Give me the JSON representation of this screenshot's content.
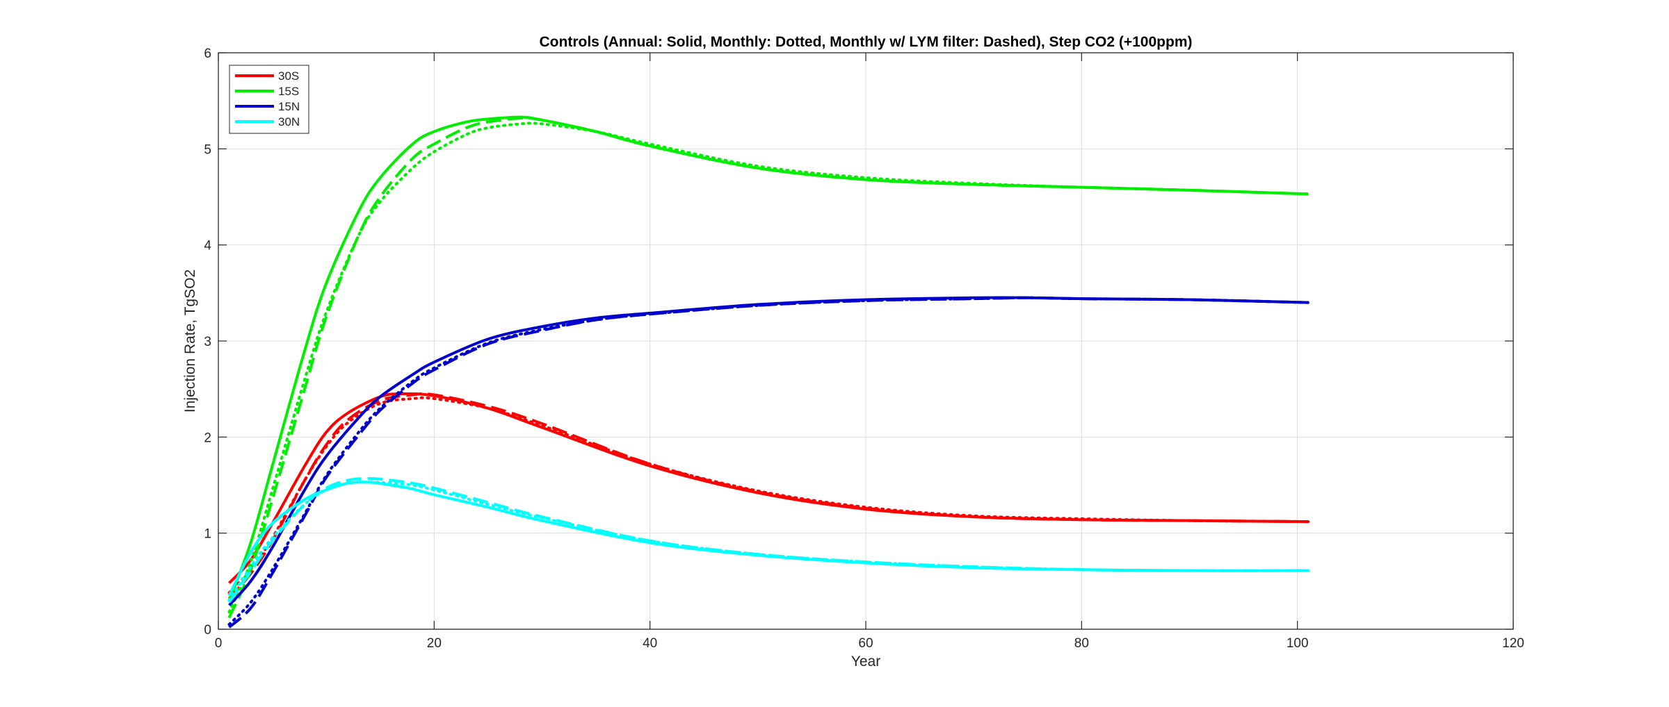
{
  "chart_data": {
    "type": "line",
    "title": "Controls (Annual: Solid, Monthly: Dotted, Monthly w/ LYM filter: Dashed), Step CO2 (+100ppm)",
    "xlabel": "Year",
    "ylabel": "Injection Rate, TgSO2",
    "xlim": [
      0,
      120
    ],
    "ylim": [
      0,
      6
    ],
    "xticks": [
      0,
      20,
      40,
      60,
      80,
      100,
      120
    ],
    "yticks": [
      0,
      1,
      2,
      3,
      4,
      5,
      6
    ],
    "grid": true,
    "legend_position": "top-left",
    "styles": {
      "annual": "solid",
      "monthly": "dotted",
      "monthly_lym": "dashed"
    },
    "series": [
      {
        "name": "30S",
        "color": "#ff0000",
        "annual": {
          "x": [
            1,
            3,
            5,
            8,
            10,
            12,
            15,
            17,
            20,
            25,
            30,
            40,
            50,
            60,
            70,
            80,
            90,
            101
          ],
          "y": [
            0.48,
            0.72,
            1.1,
            1.7,
            2.05,
            2.25,
            2.42,
            2.45,
            2.43,
            2.3,
            2.1,
            1.7,
            1.42,
            1.25,
            1.17,
            1.14,
            1.13,
            1.12
          ]
        },
        "monthly": {
          "x": [
            1,
            3,
            5,
            8,
            10,
            12,
            15,
            18,
            20,
            25,
            30,
            40,
            50,
            60,
            70,
            80,
            90,
            101
          ],
          "y": [
            0.38,
            0.62,
            0.95,
            1.55,
            1.9,
            2.15,
            2.35,
            2.4,
            2.4,
            2.3,
            2.12,
            1.72,
            1.44,
            1.27,
            1.18,
            1.15,
            1.13,
            1.12
          ]
        },
        "monthly_lym": {
          "x": [
            1,
            3,
            5,
            8,
            10,
            12,
            15,
            18,
            20,
            25,
            30,
            40,
            50,
            60,
            70,
            80,
            90,
            101
          ],
          "y": [
            0.32,
            0.58,
            0.92,
            1.55,
            1.92,
            2.18,
            2.38,
            2.44,
            2.44,
            2.32,
            2.14,
            1.72,
            1.43,
            1.26,
            1.17,
            1.14,
            1.13,
            1.12
          ]
        }
      },
      {
        "name": "15S",
        "color": "#00ee00",
        "annual": {
          "x": [
            1,
            3,
            5,
            8,
            10,
            13,
            15,
            18,
            20,
            23,
            25,
            28,
            30,
            35,
            40,
            50,
            60,
            70,
            80,
            90,
            101
          ],
          "y": [
            0.3,
            0.9,
            1.7,
            2.9,
            3.6,
            4.35,
            4.7,
            5.05,
            5.18,
            5.28,
            5.31,
            5.33,
            5.3,
            5.18,
            5.03,
            4.8,
            4.68,
            4.63,
            4.6,
            4.57,
            4.53
          ]
        },
        "monthly": {
          "x": [
            1,
            3,
            5,
            8,
            10,
            13,
            15,
            18,
            20,
            23,
            25,
            28,
            30,
            35,
            40,
            50,
            60,
            70,
            80,
            90,
            101
          ],
          "y": [
            0.18,
            0.7,
            1.45,
            2.6,
            3.3,
            4.1,
            4.45,
            4.8,
            4.97,
            5.15,
            5.22,
            5.26,
            5.26,
            5.18,
            5.05,
            4.82,
            4.7,
            4.64,
            4.6,
            4.57,
            4.53
          ]
        },
        "monthly_lym": {
          "x": [
            1,
            3,
            5,
            8,
            10,
            13,
            15,
            18,
            20,
            23,
            25,
            28,
            30,
            35,
            40,
            50,
            60,
            70,
            80,
            90,
            101
          ],
          "y": [
            0.12,
            0.62,
            1.35,
            2.5,
            3.25,
            4.1,
            4.5,
            4.9,
            5.05,
            5.22,
            5.28,
            5.32,
            5.3,
            5.18,
            5.03,
            4.8,
            4.68,
            4.63,
            4.6,
            4.57,
            4.53
          ]
        }
      },
      {
        "name": "15N",
        "color": "#0000cc",
        "annual": {
          "x": [
            1,
            3,
            5,
            8,
            10,
            13,
            15,
            18,
            20,
            25,
            30,
            35,
            40,
            50,
            60,
            70,
            75,
            80,
            90,
            101
          ],
          "y": [
            0.25,
            0.5,
            0.85,
            1.45,
            1.8,
            2.2,
            2.42,
            2.65,
            2.78,
            3.02,
            3.15,
            3.24,
            3.29,
            3.38,
            3.43,
            3.45,
            3.45,
            3.44,
            3.43,
            3.4
          ]
        },
        "monthly": {
          "x": [
            1,
            3,
            5,
            8,
            10,
            13,
            15,
            18,
            20,
            25,
            30,
            35,
            40,
            50,
            60,
            70,
            75,
            80,
            90,
            101
          ],
          "y": [
            0.05,
            0.28,
            0.62,
            1.2,
            1.6,
            2.05,
            2.3,
            2.58,
            2.72,
            2.98,
            3.12,
            3.22,
            3.28,
            3.37,
            3.42,
            3.44,
            3.45,
            3.44,
            3.43,
            3.4
          ]
        },
        "monthly_lym": {
          "x": [
            1,
            3,
            5,
            8,
            10,
            13,
            15,
            18,
            20,
            25,
            30,
            35,
            40,
            50,
            60,
            70,
            75,
            80,
            90,
            101
          ],
          "y": [
            0.02,
            0.22,
            0.58,
            1.18,
            1.58,
            2.02,
            2.28,
            2.56,
            2.7,
            2.97,
            3.11,
            3.22,
            3.28,
            3.37,
            3.42,
            3.44,
            3.45,
            3.44,
            3.43,
            3.4
          ]
        }
      },
      {
        "name": "30N",
        "color": "#00ffff",
        "annual": {
          "x": [
            1,
            3,
            5,
            8,
            10,
            12,
            14,
            16,
            18,
            20,
            25,
            30,
            40,
            50,
            60,
            70,
            80,
            90,
            101
          ],
          "y": [
            0.35,
            0.8,
            1.1,
            1.35,
            1.45,
            1.52,
            1.53,
            1.5,
            1.46,
            1.4,
            1.27,
            1.13,
            0.9,
            0.77,
            0.69,
            0.64,
            0.62,
            0.61,
            0.61
          ]
        },
        "monthly": {
          "x": [
            1,
            3,
            5,
            8,
            10,
            12,
            14,
            16,
            18,
            20,
            25,
            30,
            40,
            50,
            60,
            70,
            80,
            90,
            101
          ],
          "y": [
            0.3,
            0.65,
            0.95,
            1.3,
            1.45,
            1.52,
            1.53,
            1.52,
            1.5,
            1.45,
            1.3,
            1.16,
            0.92,
            0.78,
            0.7,
            0.65,
            0.62,
            0.61,
            0.61
          ]
        },
        "monthly_lym": {
          "x": [
            1,
            3,
            5,
            8,
            10,
            12,
            14,
            16,
            18,
            20,
            25,
            30,
            40,
            50,
            60,
            70,
            80,
            90,
            101
          ],
          "y": [
            0.28,
            0.6,
            0.92,
            1.3,
            1.47,
            1.55,
            1.57,
            1.55,
            1.52,
            1.47,
            1.32,
            1.17,
            0.92,
            0.78,
            0.7,
            0.65,
            0.62,
            0.61,
            0.61
          ]
        }
      }
    ]
  }
}
